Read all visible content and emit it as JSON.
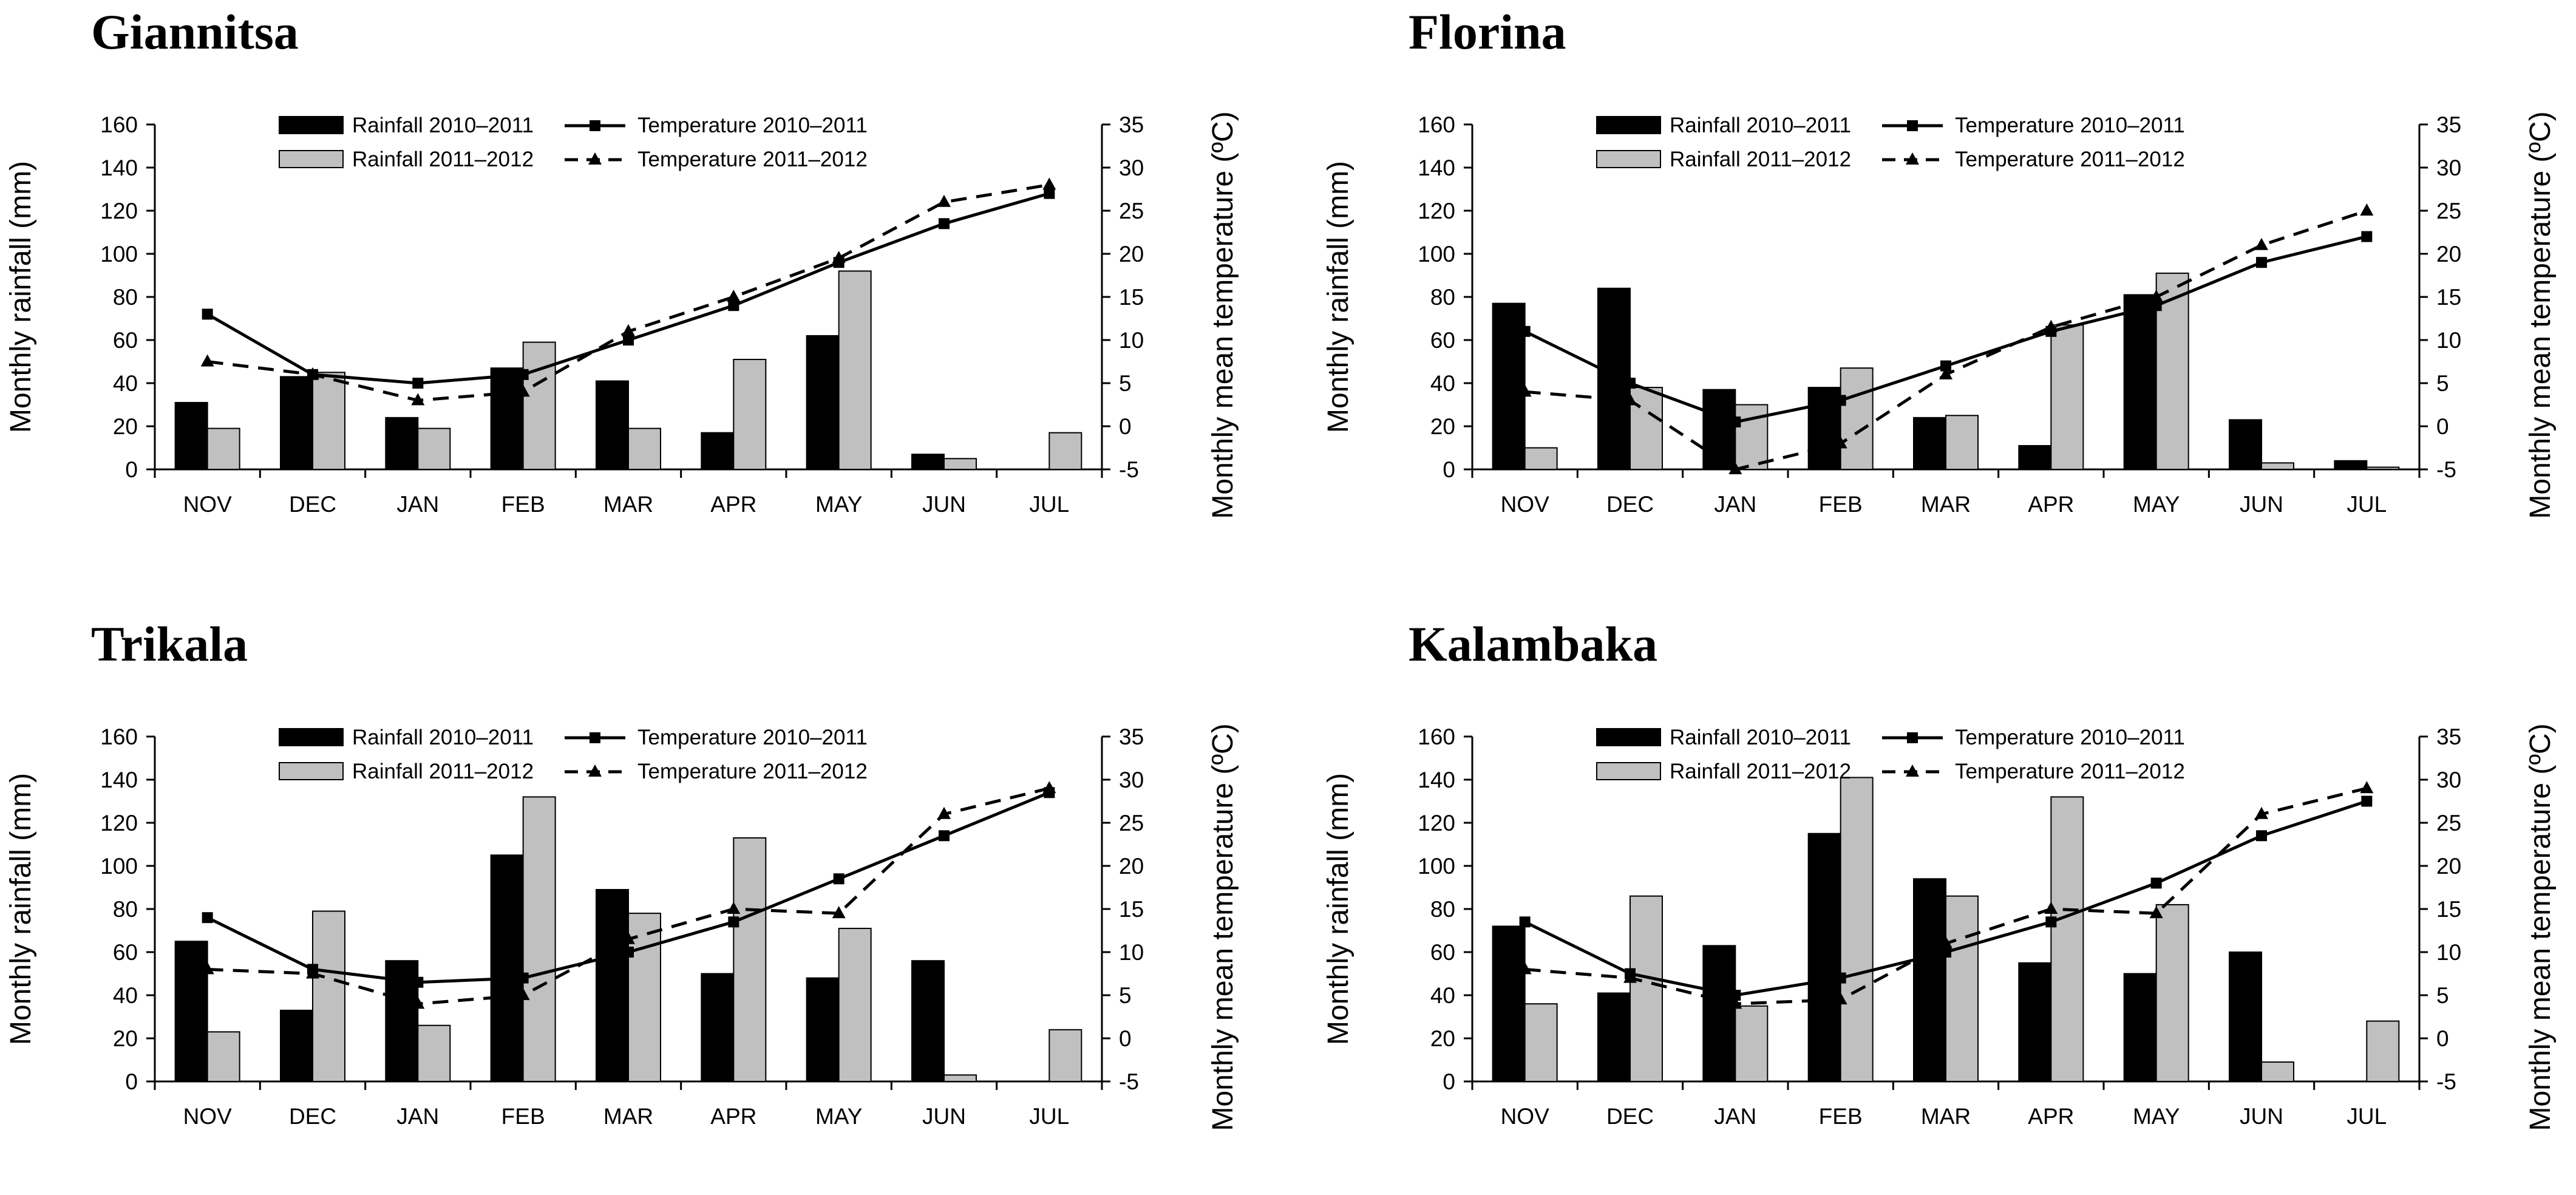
{
  "legend": {
    "rain1": "Rainfall 2010–2011",
    "rain2": "Rainfall 2011–2012",
    "temp1": "Temperature 2010–2011",
    "temp2": "Temperature 2011–2012"
  },
  "colors": {
    "rain1": "#000000",
    "rain2": "#c0c0c0",
    "axis": "#000000"
  },
  "chart_data": [
    {
      "type": "bar",
      "title": "Giannitsa",
      "ylabel": "Monthly rainfall (mm)",
      "y2label": "Monthly mean temperature (ºC)",
      "categories": [
        "NOV",
        "DEC",
        "JAN",
        "FEB",
        "MAR",
        "APR",
        "MAY",
        "JUN",
        "JUL"
      ],
      "ylim": [
        0,
        160
      ],
      "yticks": [
        0,
        20,
        40,
        60,
        80,
        100,
        120,
        140,
        160
      ],
      "y2lim": [
        -5,
        35
      ],
      "y2ticks": [
        -5,
        0,
        5,
        10,
        15,
        20,
        25,
        30,
        35
      ],
      "legend_position": "top-center",
      "series": [
        {
          "name": "Rainfall 2010–2011",
          "type": "bar",
          "axis": "left",
          "values": [
            31,
            43,
            24,
            47,
            41,
            17,
            62,
            7,
            0
          ]
        },
        {
          "name": "Rainfall 2011–2012",
          "type": "bar",
          "axis": "left",
          "values": [
            19,
            45,
            19,
            59,
            19,
            51,
            92,
            5,
            17
          ]
        },
        {
          "name": "Temperature 2010–2011",
          "type": "line",
          "axis": "right",
          "values": [
            13,
            6,
            5,
            6,
            10,
            14,
            19,
            23.5,
            27
          ]
        },
        {
          "name": "Temperature 2011–2012",
          "type": "line",
          "axis": "right",
          "values": [
            7.5,
            6,
            3,
            4,
            11,
            15,
            19.5,
            26,
            28
          ]
        }
      ]
    },
    {
      "type": "bar",
      "title": "Florina",
      "ylabel": "Monthly rainfall (mm)",
      "y2label": "Monthly mean temperature (ºC)",
      "categories": [
        "NOV",
        "DEC",
        "JAN",
        "FEB",
        "MAR",
        "APR",
        "MAY",
        "JUN",
        "JUL"
      ],
      "ylim": [
        0,
        160
      ],
      "yticks": [
        0,
        20,
        40,
        60,
        80,
        100,
        120,
        140,
        160
      ],
      "y2lim": [
        -5,
        35
      ],
      "y2ticks": [
        -5,
        0,
        5,
        10,
        15,
        20,
        25,
        30,
        35
      ],
      "legend_position": "top-center",
      "series": [
        {
          "name": "Rainfall 2010–2011",
          "type": "bar",
          "axis": "left",
          "values": [
            77,
            84,
            37,
            38,
            24,
            11,
            81,
            23,
            4
          ]
        },
        {
          "name": "Rainfall 2011–2012",
          "type": "bar",
          "axis": "left",
          "values": [
            10,
            38,
            30,
            47,
            25,
            67,
            91,
            3,
            1
          ]
        },
        {
          "name": "Temperature 2010–2011",
          "type": "line",
          "axis": "right",
          "values": [
            11,
            5,
            0.5,
            3,
            7,
            11,
            14,
            19,
            22
          ]
        },
        {
          "name": "Temperature 2011–2012",
          "type": "line",
          "axis": "right",
          "values": [
            4,
            3,
            -5,
            -2,
            6,
            11.5,
            15,
            21,
            25
          ]
        }
      ]
    },
    {
      "type": "bar",
      "title": "Trikala",
      "ylabel": "Monthly rainfall (mm)",
      "y2label": "Monthly mean temperature (ºC)",
      "categories": [
        "NOV",
        "DEC",
        "JAN",
        "FEB",
        "MAR",
        "APR",
        "MAY",
        "JUN",
        "JUL"
      ],
      "ylim": [
        0,
        160
      ],
      "yticks": [
        0,
        20,
        40,
        60,
        80,
        100,
        120,
        140,
        160
      ],
      "y2lim": [
        -5,
        35
      ],
      "y2ticks": [
        -5,
        0,
        5,
        10,
        15,
        20,
        25,
        30,
        35
      ],
      "legend_position": "top-center",
      "series": [
        {
          "name": "Rainfall 2010–2011",
          "type": "bar",
          "axis": "left",
          "values": [
            65,
            33,
            56,
            105,
            89,
            50,
            48,
            56,
            0
          ]
        },
        {
          "name": "Rainfall 2011–2012",
          "type": "bar",
          "axis": "left",
          "values": [
            23,
            79,
            26,
            132,
            78,
            113,
            71,
            3,
            24
          ]
        },
        {
          "name": "Temperature 2010–2011",
          "type": "line",
          "axis": "right",
          "values": [
            14,
            8,
            6.5,
            7,
            10,
            13.5,
            18.5,
            23.5,
            28.5
          ]
        },
        {
          "name": "Temperature 2011–2012",
          "type": "line",
          "axis": "right",
          "values": [
            8,
            7.5,
            4,
            5,
            11.5,
            15,
            14.5,
            26,
            29
          ]
        }
      ]
    },
    {
      "type": "bar",
      "title": "Kalambaka",
      "ylabel": "Monthly rainfall (mm)",
      "y2label": "Monthly mean temperature (ºC)",
      "categories": [
        "NOV",
        "DEC",
        "JAN",
        "FEB",
        "MAR",
        "APR",
        "MAY",
        "JUN",
        "JUL"
      ],
      "ylim": [
        0,
        160
      ],
      "yticks": [
        0,
        20,
        40,
        60,
        80,
        100,
        120,
        140,
        160
      ],
      "y2lim": [
        -5,
        35
      ],
      "y2ticks": [
        -5,
        0,
        5,
        10,
        15,
        20,
        25,
        30,
        35
      ],
      "legend_position": "top-center",
      "series": [
        {
          "name": "Rainfall 2010–2011",
          "type": "bar",
          "axis": "left",
          "values": [
            72,
            41,
            63,
            115,
            94,
            55,
            50,
            60,
            0
          ]
        },
        {
          "name": "Rainfall 2011–2012",
          "type": "bar",
          "axis": "left",
          "values": [
            36,
            86,
            35,
            141,
            86,
            132,
            82,
            9,
            28
          ]
        },
        {
          "name": "Temperature 2010–2011",
          "type": "line",
          "axis": "right",
          "values": [
            13.5,
            7.5,
            5,
            7,
            10,
            13.5,
            18,
            23.5,
            27.5
          ]
        },
        {
          "name": "Temperature 2011–2012",
          "type": "line",
          "axis": "right",
          "values": [
            8,
            7,
            4,
            4.5,
            11,
            15,
            14.5,
            26,
            29
          ]
        }
      ]
    }
  ]
}
